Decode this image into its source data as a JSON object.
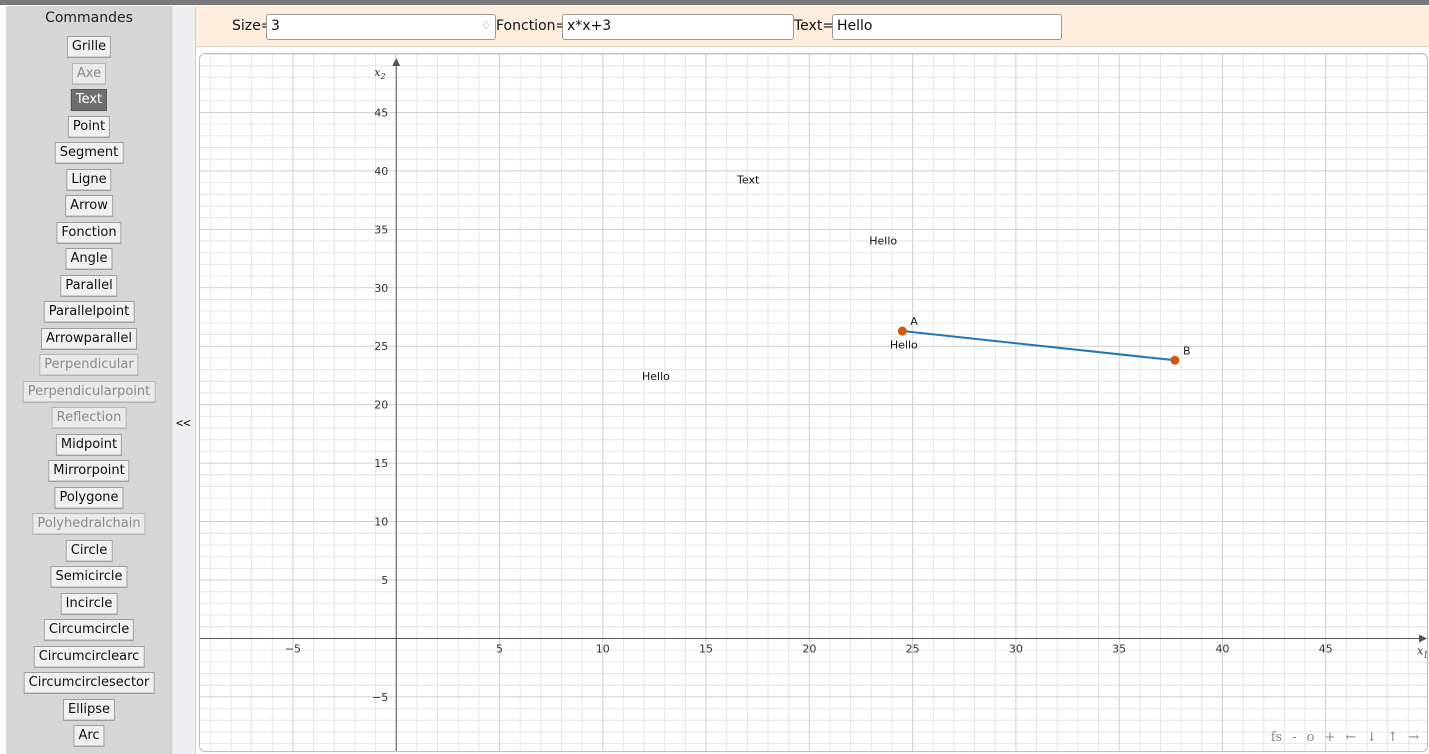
{
  "sidebar": {
    "title": "Commandes",
    "commands": [
      {
        "label": "Grille",
        "state": "normal"
      },
      {
        "label": "Axe",
        "state": "disabled"
      },
      {
        "label": "Text",
        "state": "active"
      },
      {
        "label": "Point",
        "state": "normal"
      },
      {
        "label": "Segment",
        "state": "normal"
      },
      {
        "label": "Ligne",
        "state": "normal"
      },
      {
        "label": "Arrow",
        "state": "normal"
      },
      {
        "label": "Fonction",
        "state": "normal"
      },
      {
        "label": "Angle",
        "state": "normal"
      },
      {
        "label": "Parallel",
        "state": "normal"
      },
      {
        "label": "Parallelpoint",
        "state": "normal"
      },
      {
        "label": "Arrowparallel",
        "state": "normal"
      },
      {
        "label": "Perpendicular",
        "state": "disabled"
      },
      {
        "label": "Perpendicularpoint",
        "state": "disabled"
      },
      {
        "label": "Reflection",
        "state": "disabled"
      },
      {
        "label": "Midpoint",
        "state": "normal"
      },
      {
        "label": "Mirrorpoint",
        "state": "normal"
      },
      {
        "label": "Polygone",
        "state": "normal"
      },
      {
        "label": "Polyhedralchain",
        "state": "disabled"
      },
      {
        "label": "Circle",
        "state": "normal"
      },
      {
        "label": "Semicircle",
        "state": "normal"
      },
      {
        "label": "Incircle",
        "state": "normal"
      },
      {
        "label": "Circumcircle",
        "state": "normal"
      },
      {
        "label": "Circumcirclearc",
        "state": "normal"
      },
      {
        "label": "Circumcirclesector",
        "state": "normal"
      },
      {
        "label": "Ellipse",
        "state": "normal"
      },
      {
        "label": "Arc",
        "state": "normal"
      }
    ],
    "collapse_label": "<<"
  },
  "toolbar": {
    "size_label": "Size=",
    "size_value": "3",
    "spinner_glyph": "♢",
    "function_label": "Fonction=",
    "function_value": "x*x+3",
    "text_label": "Text=",
    "text_value": "Hello"
  },
  "graph": {
    "x_axis_label": "x",
    "x_axis_sub": "1",
    "y_axis_label": "x",
    "y_axis_sub": "2",
    "x_range": [
      -9.5,
      50
    ],
    "y_range": [
      -9.8,
      50
    ],
    "x_ticks": [
      -5,
      5,
      10,
      15,
      20,
      25,
      30,
      35,
      40,
      45
    ],
    "y_ticks": [
      -5,
      5,
      10,
      15,
      20,
      25,
      30,
      35,
      40,
      45
    ],
    "minor_step": 1,
    "major_step": 5,
    "texts": [
      {
        "text": "Text",
        "x": 16.5,
        "y": 38.9
      },
      {
        "text": "Hello",
        "x": 22.9,
        "y": 33.7
      },
      {
        "text": "Hello",
        "x": 11.9,
        "y": 22.1
      },
      {
        "text": "Hello",
        "x": 23.9,
        "y": 24.8
      }
    ],
    "points": [
      {
        "label": "A",
        "x": 24.5,
        "y": 26.3
      },
      {
        "label": "B",
        "x": 37.7,
        "y": 23.8
      }
    ],
    "segment": [
      "A",
      "B"
    ],
    "colors": {
      "point": "#cc5a0a",
      "segment": "#1f77b4",
      "grid_minor": "#e6e6e6",
      "grid_major": "#cfcfcf",
      "axis": "#555555"
    }
  },
  "nav_controls": [
    "fs",
    "-",
    "o",
    "+",
    "←",
    "↓",
    "↑",
    "→"
  ]
}
